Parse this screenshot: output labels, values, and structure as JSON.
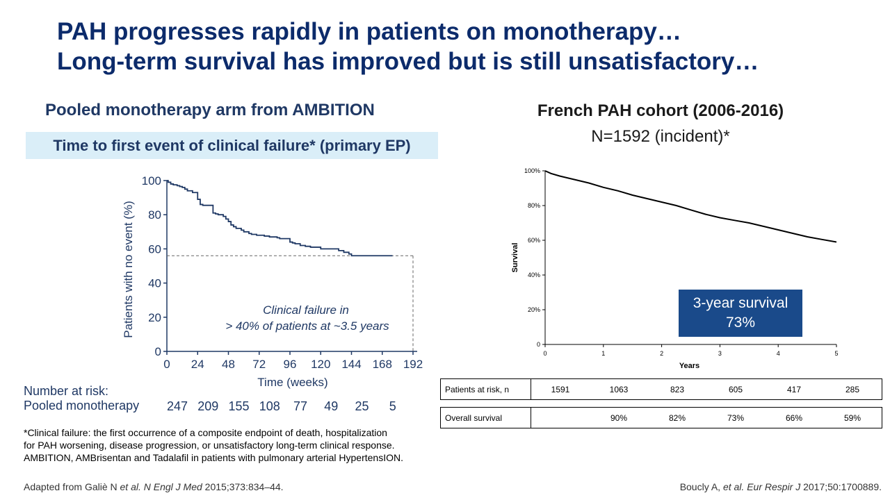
{
  "title": {
    "line1": "PAH progresses rapidly in patients on monotherapy…",
    "line2": "Long-term survival has improved but is still unsatisfactory…"
  },
  "left": {
    "heading": "Pooled monotherapy arm from AMBITION",
    "banner": "Time to first event of clinical failure* (primary EP)",
    "annotation_line1": "Clinical failure in",
    "annotation_line2": "> 40% of patients at ~3.5 years",
    "risk_title": "Number at risk:",
    "risk_label": "Pooled monotherapy",
    "risk_values": [
      "247",
      "209",
      "155",
      "108",
      "77",
      "49",
      "25",
      "5"
    ]
  },
  "right": {
    "heading": "French PAH cohort (2006-2016)",
    "subheading": "N=1592 (incident)*",
    "survival_box_line1": "3-year survival",
    "survival_box_line2": "73%",
    "table": {
      "row1_label": "Patients at risk, n",
      "row1_values": [
        "1591",
        "1063",
        "823",
        "605",
        "417",
        "285"
      ],
      "row2_label": "Overall survival",
      "row2_values": [
        "",
        "90%",
        "82%",
        "73%",
        "66%",
        "59%"
      ]
    }
  },
  "footnote": {
    "line1": "*Clinical failure: the first occurrence of a composite endpoint of death, hospitalization",
    "line2": "for PAH worsening, disease progression, or unsatisfactory long-term clinical response.",
    "line3": "AMBITION, AMBrisentan and Tadalafil in patients with pulmonary arterial HypertensION."
  },
  "references": {
    "left_pre": "Adapted from Galiè N ",
    "left_etal": "et al. N Engl J Med",
    "left_post": " 2015;373:834–44.",
    "right_pre": "Boucly A, ",
    "right_etal": "et al. Eur Respir J",
    "right_post": " 2017;50:1700889."
  },
  "chart_data": [
    {
      "type": "line",
      "subtype": "kaplan-meier-step",
      "title": "Time to first event of clinical failure* (primary EP)",
      "xlabel": "Time (weeks)",
      "ylabel": "Patients with no event (%)",
      "xlim": [
        0,
        192
      ],
      "ylim": [
        0,
        100
      ],
      "xticks": [
        "0",
        "24",
        "48",
        "72",
        "96",
        "120",
        "144",
        "168",
        "192"
      ],
      "yticks": [
        "0",
        "20",
        "40",
        "60",
        "80",
        "100"
      ],
      "series": [
        {
          "name": "Pooled monotherapy",
          "x": [
            0,
            1,
            3,
            5,
            8,
            10,
            12,
            14,
            16,
            20,
            24,
            26,
            28,
            32,
            36,
            38,
            40,
            44,
            46,
            48,
            50,
            52,
            54,
            58,
            60,
            64,
            66,
            70,
            72,
            76,
            80,
            84,
            86,
            88,
            96,
            98,
            100,
            104,
            108,
            112,
            120,
            128,
            134,
            138,
            142,
            144,
            176
          ],
          "y": [
            100,
            99,
            98,
            97.5,
            97,
            96.5,
            96,
            95,
            94,
            93,
            89,
            86,
            85.5,
            85.5,
            81,
            80.5,
            80,
            79,
            77.5,
            76,
            74,
            73,
            72,
            71,
            70,
            69,
            68.5,
            68,
            68,
            67.5,
            67,
            67,
            66.5,
            66,
            64,
            63.5,
            63,
            62,
            61.5,
            61,
            60,
            60,
            59,
            58,
            57,
            56,
            56
          ]
        }
      ],
      "reference_level": 56,
      "reference_time": 192,
      "number_at_risk": [
        247,
        209,
        155,
        108,
        77,
        49,
        25,
        5
      ]
    },
    {
      "type": "line",
      "subtype": "survival-curve",
      "title": "French PAH cohort (2006-2016)",
      "xlabel": "Years",
      "ylabel": "Survival",
      "xlim": [
        0,
        5
      ],
      "ylim": [
        0,
        100
      ],
      "xticks": [
        "0",
        "1",
        "2",
        "3",
        "4",
        "5"
      ],
      "yticks": [
        "0",
        "20%",
        "40%",
        "60%",
        "80%",
        "100%"
      ],
      "series": [
        {
          "name": "Overall survival",
          "x": [
            0,
            0.1,
            0.25,
            0.5,
            0.75,
            1,
            1.25,
            1.5,
            1.75,
            2,
            2.25,
            2.5,
            2.75,
            3,
            3.25,
            3.5,
            3.75,
            4,
            4.25,
            4.5,
            4.75,
            5
          ],
          "y": [
            100,
            98.5,
            97,
            95,
            93,
            90.5,
            88.5,
            86,
            84,
            82,
            80,
            77.5,
            75,
            73,
            71.5,
            70,
            68,
            66,
            64,
            62,
            60.5,
            59
          ]
        }
      ],
      "patients_at_risk": [
        1591,
        1063,
        823,
        605,
        417,
        285
      ],
      "overall_survival": [
        "",
        "90%",
        "82%",
        "73%",
        "66%",
        "59%"
      ]
    }
  ]
}
